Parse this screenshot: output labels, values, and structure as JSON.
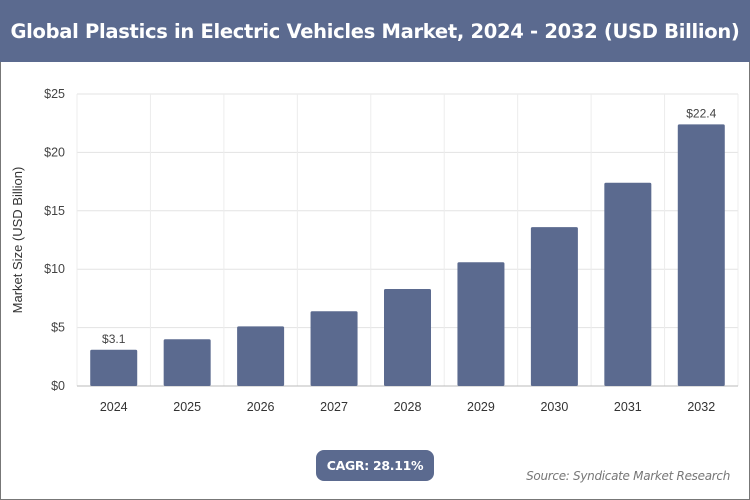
{
  "title": "Global Plastics in Electric Vehicles Market, 2024 - 2032 (USD Billion)",
  "cagr_label": "CAGR: 28.11%",
  "source": "Source: Syndicate Market Research",
  "chart_data": {
    "type": "bar",
    "title": "Global Plastics in Electric Vehicles Market, 2024 - 2032 (USD Billion)",
    "xlabel": "",
    "ylabel": "Market Size (USD Billion)",
    "categories": [
      "2024",
      "2025",
      "2026",
      "2027",
      "2028",
      "2029",
      "2030",
      "2031",
      "2032"
    ],
    "values": [
      3.1,
      4.0,
      5.1,
      6.4,
      8.3,
      10.6,
      13.6,
      17.4,
      22.4
    ],
    "data_labels": {
      "0": "$3.1",
      "8": "$22.4"
    },
    "ylim": [
      0,
      25
    ],
    "yticks": [
      0,
      5,
      10,
      15,
      20,
      25
    ],
    "ytick_labels": [
      "$0",
      "$5",
      "$10",
      "$15",
      "$20",
      "$25"
    ],
    "grid": true,
    "bar_color": "#5b6a8f"
  }
}
